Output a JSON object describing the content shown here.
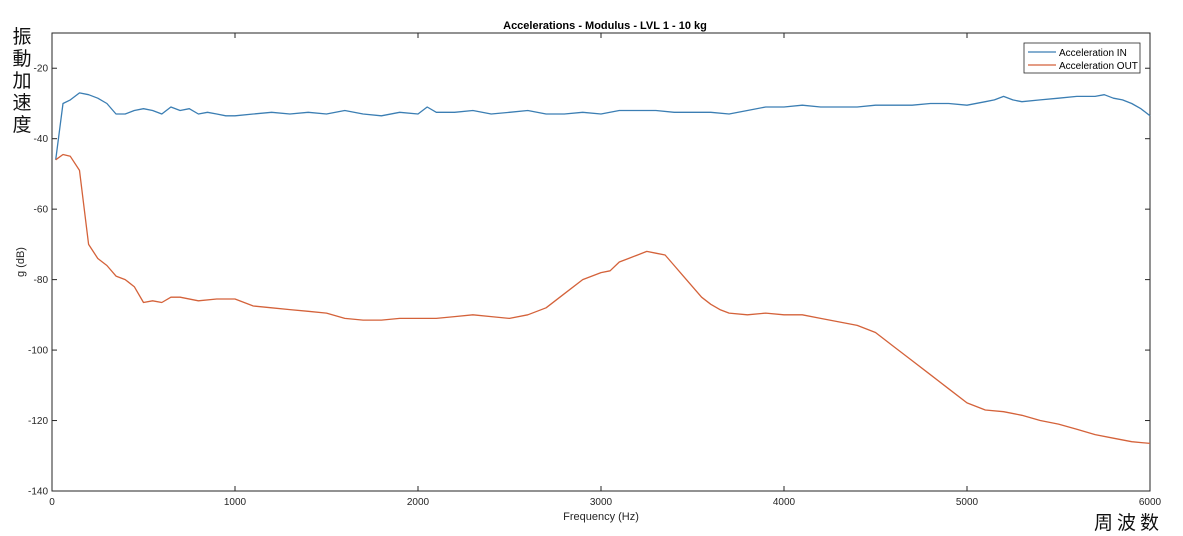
{
  "annotations": {
    "vertical_label": "振動加速度",
    "horizontal_label": "周波数"
  },
  "chart_data": {
    "type": "line",
    "title": "Accelerations - Modulus - LVL 1 - 10 kg",
    "xlabel": "Frequency (Hz)",
    "ylabel": "g (dB)",
    "xlim": [
      0,
      6000
    ],
    "ylim": [
      -140,
      -10
    ],
    "xticks": [
      0,
      1000,
      2000,
      3000,
      4000,
      5000,
      6000
    ],
    "yticks": [
      -140,
      -120,
      -100,
      -80,
      -60,
      -40,
      -20
    ],
    "legend_position": "top-right",
    "grid": false,
    "series": [
      {
        "name": "Acceleration IN",
        "color": "#3b7eb3",
        "x": [
          20,
          60,
          100,
          150,
          200,
          250,
          300,
          350,
          400,
          450,
          500,
          550,
          600,
          650,
          700,
          750,
          800,
          850,
          900,
          950,
          1000,
          1100,
          1200,
          1300,
          1400,
          1500,
          1600,
          1700,
          1800,
          1900,
          2000,
          2050,
          2100,
          2200,
          2300,
          2400,
          2500,
          2600,
          2700,
          2800,
          2900,
          3000,
          3100,
          3200,
          3300,
          3400,
          3500,
          3600,
          3700,
          3800,
          3900,
          4000,
          4100,
          4200,
          4300,
          4400,
          4500,
          4600,
          4700,
          4800,
          4900,
          5000,
          5100,
          5150,
          5200,
          5250,
          5300,
          5400,
          5500,
          5600,
          5700,
          5750,
          5800,
          5850,
          5900,
          5950,
          6000
        ],
        "y": [
          -46,
          -30,
          -29,
          -27,
          -27.5,
          -28.5,
          -30,
          -33,
          -33,
          -32,
          -31.5,
          -32,
          -33,
          -31,
          -32,
          -31.5,
          -33,
          -32.5,
          -33,
          -33.5,
          -33.5,
          -33,
          -32.5,
          -33,
          -32.5,
          -33,
          -32,
          -33,
          -33.5,
          -32.5,
          -33,
          -31,
          -32.5,
          -32.5,
          -32,
          -33,
          -32.5,
          -32,
          -33,
          -33,
          -32.5,
          -33,
          -32,
          -32,
          -32,
          -32.5,
          -32.5,
          -32.5,
          -33,
          -32,
          -31,
          -31,
          -30.5,
          -31,
          -31,
          -31,
          -30.5,
          -30.5,
          -30.5,
          -30,
          -30,
          -30.5,
          -29.5,
          -29,
          -28,
          -29,
          -29.5,
          -29,
          -28.5,
          -28,
          -28,
          -27.5,
          -28.5,
          -29,
          -30,
          -31.5,
          -33.5
        ]
      },
      {
        "name": "Acceleration OUT",
        "color": "#d4623a",
        "x": [
          20,
          60,
          100,
          150,
          200,
          250,
          300,
          350,
          400,
          450,
          500,
          550,
          600,
          650,
          700,
          800,
          900,
          1000,
          1100,
          1200,
          1300,
          1400,
          1500,
          1600,
          1700,
          1800,
          1900,
          2000,
          2100,
          2200,
          2300,
          2400,
          2500,
          2600,
          2700,
          2800,
          2900,
          3000,
          3050,
          3100,
          3150,
          3200,
          3250,
          3300,
          3350,
          3400,
          3450,
          3500,
          3550,
          3600,
          3650,
          3700,
          3800,
          3900,
          4000,
          4100,
          4200,
          4300,
          4400,
          4500,
          4600,
          4700,
          4800,
          4900,
          5000,
          5100,
          5200,
          5300,
          5400,
          5500,
          5600,
          5700,
          5800,
          5900,
          6000
        ],
        "y": [
          -46,
          -44.5,
          -45,
          -49,
          -70,
          -74,
          -76,
          -79,
          -80,
          -82,
          -86.5,
          -86,
          -86.5,
          -85,
          -85,
          -86,
          -85.5,
          -85.5,
          -87.5,
          -88,
          -88.5,
          -89,
          -89.5,
          -91,
          -91.5,
          -91.5,
          -91,
          -91,
          -91,
          -90.5,
          -90,
          -90.5,
          -91,
          -90,
          -88,
          -84,
          -80,
          -78,
          -77.5,
          -75,
          -74,
          -73,
          -72,
          -72.5,
          -73,
          -76,
          -79,
          -82,
          -85,
          -87,
          -88.5,
          -89.5,
          -90,
          -89.5,
          -90,
          -90,
          -91,
          -92,
          -93,
          -95,
          -99,
          -103,
          -107,
          -111,
          -115,
          -117,
          -117.5,
          -118.5,
          -120,
          -121,
          -122.5,
          -124,
          -125,
          -126,
          -126.5
        ]
      }
    ]
  }
}
